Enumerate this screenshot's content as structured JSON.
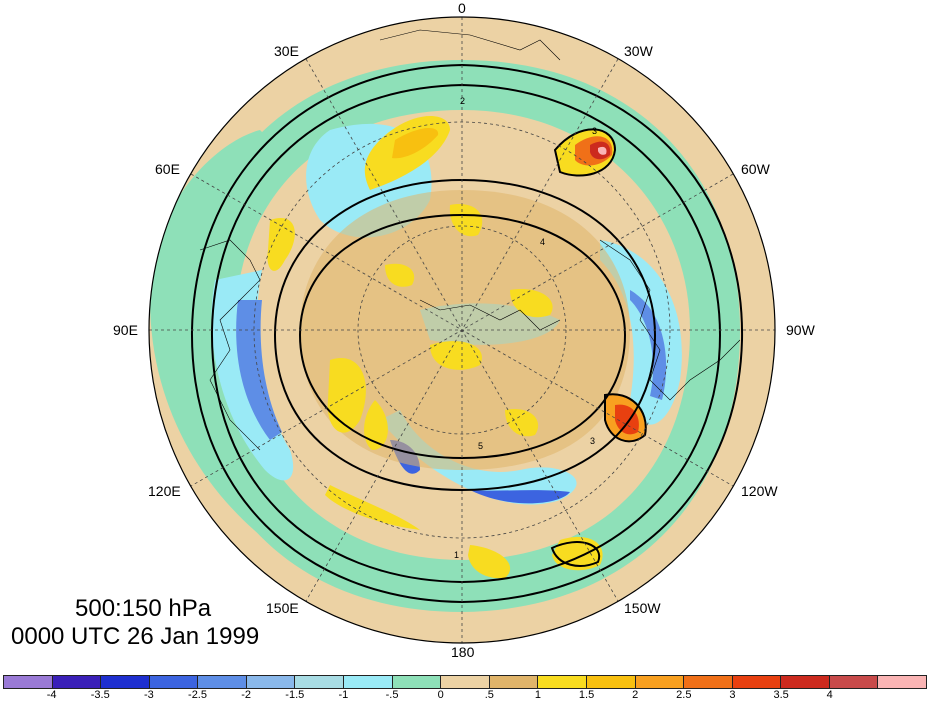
{
  "title": {
    "line1": "500:150 hPa",
    "line2": "0000 UTC 26 Jan 1999"
  },
  "longitude_labels": {
    "lon_0": "0",
    "lon_30w": "30W",
    "lon_60w": "60W",
    "lon_90w": "90W",
    "lon_120w": "120W",
    "lon_150w": "150W",
    "lon_180": "180",
    "lon_150e": "150E",
    "lon_120e": "120E",
    "lon_90e": "90E",
    "lon_60e": "60E",
    "lon_30e": "30E"
  },
  "map": {
    "projection": "north polar stereographic",
    "center": "North Pole",
    "contour_labels": [
      "1",
      "2",
      "3",
      "4",
      "5"
    ]
  },
  "colorbar": {
    "colors": [
      "#9a7ad6",
      "#3a20b8",
      "#1e2fcf",
      "#3c64e0",
      "#5e8ee6",
      "#8ab8ea",
      "#a8dce4",
      "#9aeaf6",
      "#8ee0b8",
      "#ecd2a4",
      "#e0b46a",
      "#f8dc20",
      "#f8c010",
      "#f8a020",
      "#f07018",
      "#e84010",
      "#cc2a1e",
      "#c84a4a",
      "#fab4b4"
    ],
    "tick_labels": [
      "-4",
      "-3.5",
      "-3",
      "-2.5",
      "-2",
      "-1.5",
      "-1",
      "-.5",
      "0",
      ".5",
      "1",
      "1.5",
      "2",
      "2.5",
      "3",
      "3.5",
      "4"
    ]
  }
}
